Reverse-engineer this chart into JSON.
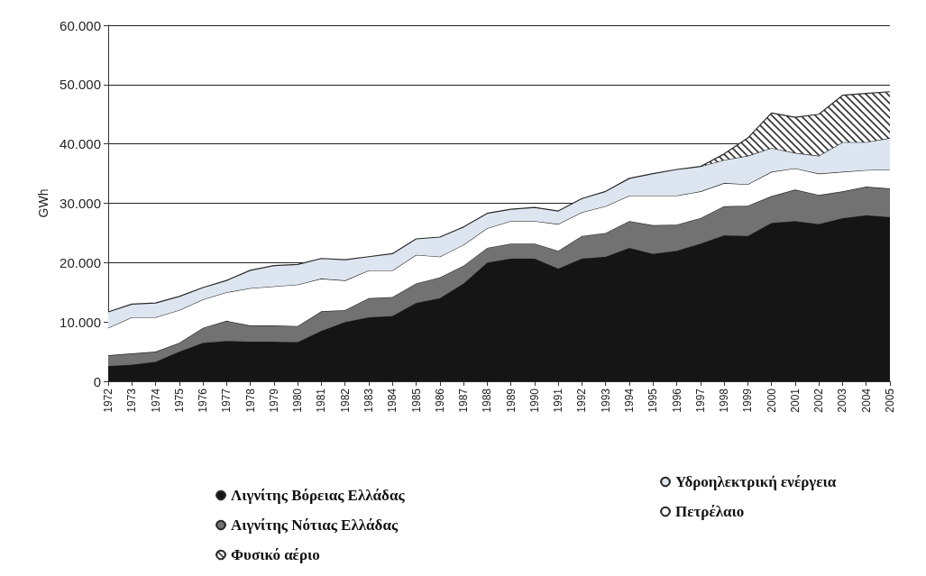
{
  "chart_data": {
    "type": "area",
    "stacked": true,
    "ylabel": "GWh",
    "categories": [
      "1972",
      "1973",
      "1974",
      "1975",
      "1976",
      "1977",
      "1978",
      "1979",
      "1980",
      "1981",
      "1982",
      "1983",
      "1984",
      "1985",
      "1986",
      "1987",
      "1988",
      "1989",
      "1990",
      "1991",
      "1992",
      "1993",
      "1994",
      "1995",
      "1996",
      "1997",
      "1998",
      "1999",
      "2000",
      "2001",
      "2002",
      "2003",
      "2004",
      "2005"
    ],
    "series": [
      {
        "name": "Λιγνίτης Βόρειας Ελλάδας",
        "color": "#151515",
        "values": [
          2600,
          2800,
          3300,
          5000,
          6500,
          6800,
          6700,
          6700,
          6600,
          8500,
          10000,
          10800,
          11000,
          13200,
          14000,
          16500,
          20000,
          20700,
          20700,
          19000,
          20700,
          21000,
          22500,
          21500,
          22000,
          23200,
          24600,
          24500,
          26700,
          27000,
          26500,
          27500,
          28000,
          27700
        ]
      },
      {
        "name": "Αιγνίτης Νότιας Ελλάδας",
        "color": "#727272",
        "values": [
          1800,
          1900,
          1700,
          1500,
          2500,
          3400,
          2700,
          2700,
          2700,
          3300,
          2000,
          3200,
          3200,
          3300,
          3500,
          3000,
          2500,
          2500,
          2500,
          3000,
          3800,
          4000,
          4500,
          4800,
          4400,
          4300,
          4900,
          5100,
          4500,
          5300,
          4900,
          4500,
          4800,
          4800
        ]
      },
      {
        "name": "Πετρέλαιο",
        "color": "#ffffff",
        "values": [
          4600,
          6100,
          5800,
          5500,
          4800,
          4800,
          6300,
          6600,
          7000,
          5500,
          5000,
          4700,
          4500,
          4800,
          3500,
          3500,
          3300,
          3800,
          3800,
          4500,
          4000,
          4500,
          4300,
          5000,
          4900,
          4500,
          3900,
          3600,
          4100,
          3600,
          3600,
          3300,
          2800,
          3200
        ]
      },
      {
        "name": "Υδροηλεκτρική ενέργεια",
        "color": "#dde6f0",
        "values": [
          2700,
          2200,
          2400,
          2300,
          2000,
          2000,
          3000,
          3500,
          3400,
          3400,
          3500,
          2300,
          2800,
          2700,
          3300,
          3000,
          2500,
          2000,
          2300,
          2200,
          2300,
          2500,
          2900,
          3700,
          4400,
          4200,
          3900,
          4800,
          4000,
          2600,
          3000,
          5000,
          4700,
          5300
        ]
      },
      {
        "name": "Φυσικό αέριο",
        "color": "#333333",
        "values": [
          null,
          null,
          null,
          null,
          null,
          null,
          null,
          null,
          null,
          null,
          null,
          null,
          null,
          null,
          null,
          null,
          null,
          null,
          null,
          null,
          null,
          null,
          null,
          null,
          null,
          0,
          1000,
          3000,
          5900,
          6000,
          7000,
          7900,
          8200,
          7800
        ]
      }
    ],
    "ylim": [
      0,
      60000
    ],
    "yticks": [
      {
        "value": 0,
        "label": "0"
      },
      {
        "value": 10000,
        "label": "10.000"
      },
      {
        "value": 20000,
        "label": "20.000"
      },
      {
        "value": 30000,
        "label": "30.000"
      },
      {
        "value": 40000,
        "label": "40.000"
      },
      {
        "value": 50000,
        "label": "50.000"
      },
      {
        "value": 60000,
        "label": "60.000"
      }
    ],
    "grid": "y",
    "legend": "bottom"
  }
}
